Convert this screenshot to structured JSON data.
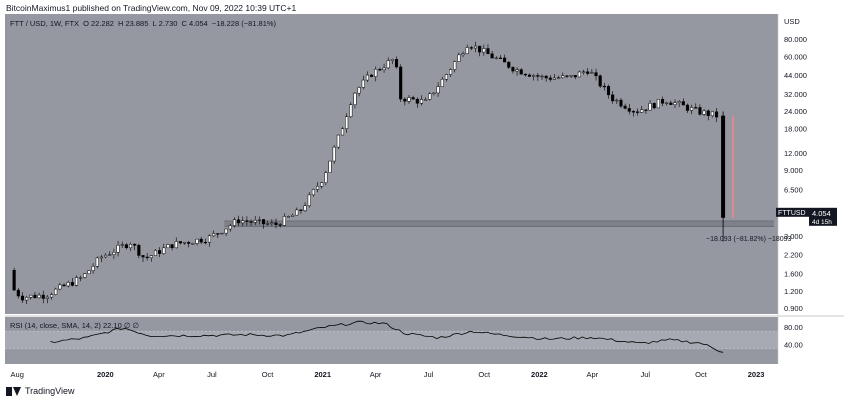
{
  "header": {
    "text": "BitcoinMaximus1 published on TradingView.com, Nov 09, 2022 10:39 UTC+1"
  },
  "legend": {
    "symbol": "FTT / USD, 1W, FTX",
    "open_label": "O",
    "open": "22.282",
    "high_label": "H",
    "high": "23.885",
    "low_label": "L",
    "low": "2.730",
    "close_label": "C",
    "close": "4.054",
    "change": "−18.228 (−81.81%)"
  },
  "rsi_legend": {
    "text": "RSI (14, close, SMA, 14, 2)",
    "value": "22.10",
    "extra": "∅ ∅"
  },
  "footer": {
    "brand": "TradingView"
  },
  "price_label": {
    "symbol": "FTTUSD",
    "price": "4.054",
    "countdown": "4d 15h"
  },
  "annotation": "−18.093 (−81.82%) −18093",
  "currency": "USD",
  "colors": {
    "up": "#ffffff",
    "down": "#000000",
    "bg": "#9598a1",
    "rsi_line": "#000000",
    "range_bar": "#e0888c"
  },
  "chart_data": [
    {
      "type": "candlestick",
      "title": "FTT / USD, 1W, FTX",
      "y_scale": "log",
      "ylim": [
        0.9,
        110
      ],
      "y_ticks": [
        "80.000",
        "60.000",
        "44.000",
        "32.000",
        "24.000",
        "18.000",
        "12.000",
        "9.000",
        "6.500",
        "4.500",
        "3.000",
        "2.200",
        "1.600",
        "1.200",
        "0.900"
      ],
      "x_ticks": [
        "Aug",
        "2020",
        "Apr",
        "Jul",
        "Oct",
        "2021",
        "Apr",
        "Jul",
        "Oct",
        "2022",
        "Apr",
        "Jul",
        "Oct",
        "2023"
      ],
      "anchor_points": [
        {
          "date": "2019-08-01",
          "price": 1.3
        },
        {
          "date": "2019-08-20",
          "price": 1.08
        },
        {
          "date": "2019-10-01",
          "price": 1.12
        },
        {
          "date": "2019-12-01",
          "price": 1.5
        },
        {
          "date": "2020-01-01",
          "price": 2.1
        },
        {
          "date": "2020-02-20",
          "price": 2.7
        },
        {
          "date": "2020-03-15",
          "price": 2.05
        },
        {
          "date": "2020-05-01",
          "price": 2.6
        },
        {
          "date": "2020-07-01",
          "price": 2.9
        },
        {
          "date": "2020-08-20",
          "price": 3.9
        },
        {
          "date": "2020-10-20",
          "price": 3.6
        },
        {
          "date": "2020-12-01",
          "price": 4.5
        },
        {
          "date": "2021-01-10",
          "price": 8.0
        },
        {
          "date": "2021-02-10",
          "price": 18.0
        },
        {
          "date": "2021-03-01",
          "price": 32.0
        },
        {
          "date": "2021-04-01",
          "price": 45.0
        },
        {
          "date": "2021-05-10",
          "price": 58.0
        },
        {
          "date": "2021-05-20",
          "price": 30.0
        },
        {
          "date": "2021-07-01",
          "price": 28.0
        },
        {
          "date": "2021-08-01",
          "price": 42.0
        },
        {
          "date": "2021-09-10",
          "price": 75.0
        },
        {
          "date": "2021-10-20",
          "price": 60.0
        },
        {
          "date": "2021-12-01",
          "price": 48.0
        },
        {
          "date": "2022-01-15",
          "price": 42.0
        },
        {
          "date": "2022-03-01",
          "price": 42.0
        },
        {
          "date": "2022-04-01",
          "price": 48.0
        },
        {
          "date": "2022-05-10",
          "price": 30.0
        },
        {
          "date": "2022-06-20",
          "price": 24.0
        },
        {
          "date": "2022-08-10",
          "price": 29.0
        },
        {
          "date": "2022-10-01",
          "price": 24.0
        },
        {
          "date": "2022-11-01",
          "price": 22.282
        }
      ],
      "last_candle": {
        "date": "2022-11-07",
        "open": 22.282,
        "high": 23.885,
        "low": 2.73,
        "close": 4.054
      },
      "support_zone": [
        3.5,
        3.85
      ]
    },
    {
      "type": "line",
      "title": "RSI (14, close, SMA, 14, 2)",
      "ylim": [
        0,
        100
      ],
      "y_ticks": [
        "80.00",
        "40.00"
      ],
      "levels": [
        70,
        30
      ],
      "points": [
        {
          "date": "2019-10-01",
          "value": 45
        },
        {
          "date": "2019-12-01",
          "value": 55
        },
        {
          "date": "2020-02-01",
          "value": 78
        },
        {
          "date": "2020-03-15",
          "value": 60
        },
        {
          "date": "2020-06-01",
          "value": 60
        },
        {
          "date": "2020-09-01",
          "value": 62
        },
        {
          "date": "2020-11-01",
          "value": 60
        },
        {
          "date": "2021-01-01",
          "value": 78
        },
        {
          "date": "2021-03-01",
          "value": 90
        },
        {
          "date": "2021-04-15",
          "value": 88
        },
        {
          "date": "2021-05-20",
          "value": 65
        },
        {
          "date": "2021-07-15",
          "value": 55
        },
        {
          "date": "2021-09-10",
          "value": 70
        },
        {
          "date": "2021-10-20",
          "value": 63
        },
        {
          "date": "2022-01-15",
          "value": 52
        },
        {
          "date": "2022-04-01",
          "value": 56
        },
        {
          "date": "2022-06-20",
          "value": 42
        },
        {
          "date": "2022-08-10",
          "value": 50
        },
        {
          "date": "2022-10-01",
          "value": 43
        },
        {
          "date": "2022-11-07",
          "value": 22.1
        }
      ]
    }
  ]
}
